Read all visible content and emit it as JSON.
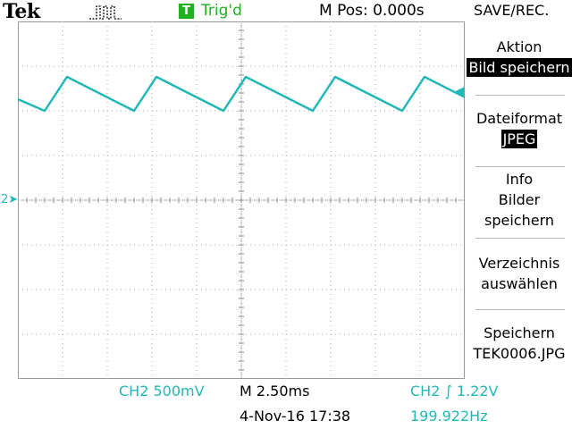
{
  "header": {
    "brand": "Tek",
    "acquisition_icon": "pulse-run-icon",
    "trigger_badge": "T",
    "trigger_status": "Trig'd",
    "horizontal_position": "M Pos: 0.000s",
    "menu_title": "SAVE/REC."
  },
  "screen": {
    "channel_marker": "2",
    "trigger_position_icon": "down-arrow-icon",
    "trigger_level_icon": "left-arrow-icon",
    "trace_color": "#22b8b8",
    "grid": {
      "divisions_x": 10,
      "divisions_y": 8
    }
  },
  "side_menu": {
    "items": [
      {
        "lines": [
          "Aktion"
        ],
        "value": "Bild speichern"
      },
      {
        "lines": [
          "Dateiformat"
        ],
        "value": "JPEG"
      },
      {
        "lines": [
          "Info",
          "Bilder",
          "speichern"
        ]
      },
      {
        "lines": [
          "Verzeichnis",
          "auswählen"
        ]
      },
      {
        "lines": [
          "Speichern",
          "TEK0006.JPG"
        ]
      }
    ]
  },
  "footer": {
    "channel_scale": "CH2  500mV",
    "timebase": "M 2.50ms",
    "datetime": "4-Nov-16 17:38",
    "trigger_info": "CH2 ∫ 1.22V",
    "frequency": "199.922Hz"
  },
  "colors": {
    "channel": "#22b8b8",
    "trigger": "#20b020"
  }
}
